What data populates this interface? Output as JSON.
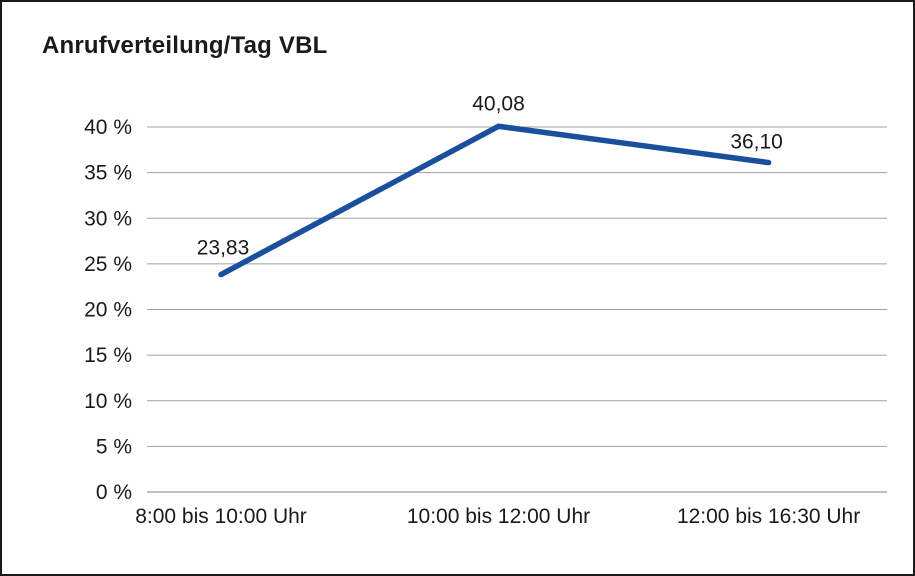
{
  "chart_data": {
    "type": "line",
    "title": "Anrufverteilung/Tag VBL",
    "categories": [
      "8:00 bis 10:00 Uhr",
      "10:00 bis 12:00 Uhr",
      "12:00 bis 16:30 Uhr"
    ],
    "values": [
      23.83,
      40.08,
      36.1
    ],
    "value_labels": [
      "23,83",
      "40,08",
      "36,10"
    ],
    "xlabel": "",
    "ylabel": "",
    "ylim": [
      0,
      40
    ],
    "ytick_step": 5,
    "ytick_labels": [
      "0 %",
      "5 %",
      "10 %",
      "15 %",
      "20 %",
      "25 %",
      "30 %",
      "35 %",
      "40 %"
    ],
    "grid": true,
    "legend_position": "none",
    "series_name": "Anrufverteilung"
  },
  "colors": {
    "line": "#1a4f9d",
    "grid": "#a0a0a0",
    "axis": "#808080",
    "text": "#1a1a1a",
    "background": "#ffffff",
    "border": "#1a1a1a"
  }
}
